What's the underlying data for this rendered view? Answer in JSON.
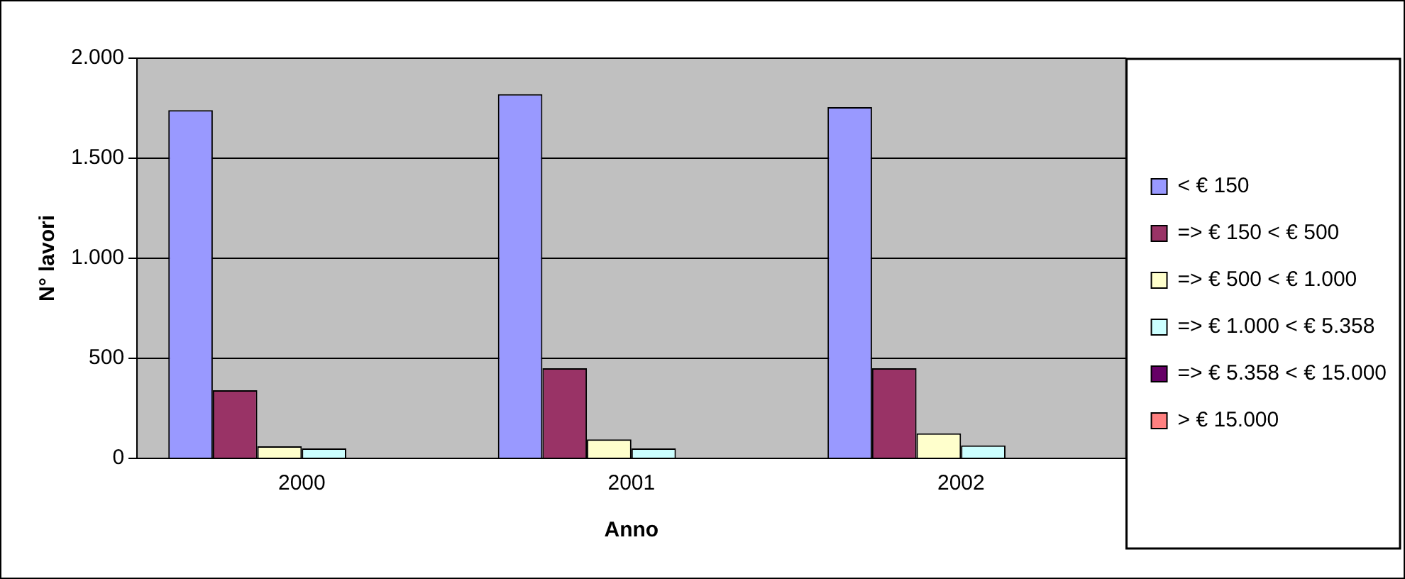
{
  "chart_data": {
    "type": "bar",
    "xlabel": "Anno",
    "ylabel": "N° lavori",
    "categories": [
      "2000",
      "2001",
      "2002"
    ],
    "series": [
      {
        "name": "< € 150",
        "color": "#9999ff",
        "values": [
          1740,
          1820,
          1755
        ]
      },
      {
        "name": "=> € 150 < € 500",
        "color": "#993366",
        "values": [
          340,
          450,
          450
        ]
      },
      {
        "name": "=> € 500 < € 1.000",
        "color": "#ffffcc",
        "values": [
          60,
          95,
          125
        ]
      },
      {
        "name": "=> € 1.000 < € 5.358",
        "color": "#ccffff",
        "values": [
          50,
          50,
          65
        ]
      },
      {
        "name": "=> € 5.358 < € 15.000",
        "color": "#660066",
        "values": [
          0,
          0,
          0
        ]
      },
      {
        "name": "> € 15.000",
        "color": "#ff8080",
        "values": [
          0,
          0,
          0
        ]
      }
    ],
    "ylim": [
      0,
      2000
    ],
    "yticks": [
      0,
      {
        "value": 500,
        "label": "500"
      },
      {
        "value": 1000,
        "label": "1.000"
      },
      {
        "value": 1500,
        "label": "1.500"
      },
      {
        "value": 2000,
        "label": "2.000"
      }
    ],
    "grid": "y",
    "legend": "right"
  }
}
